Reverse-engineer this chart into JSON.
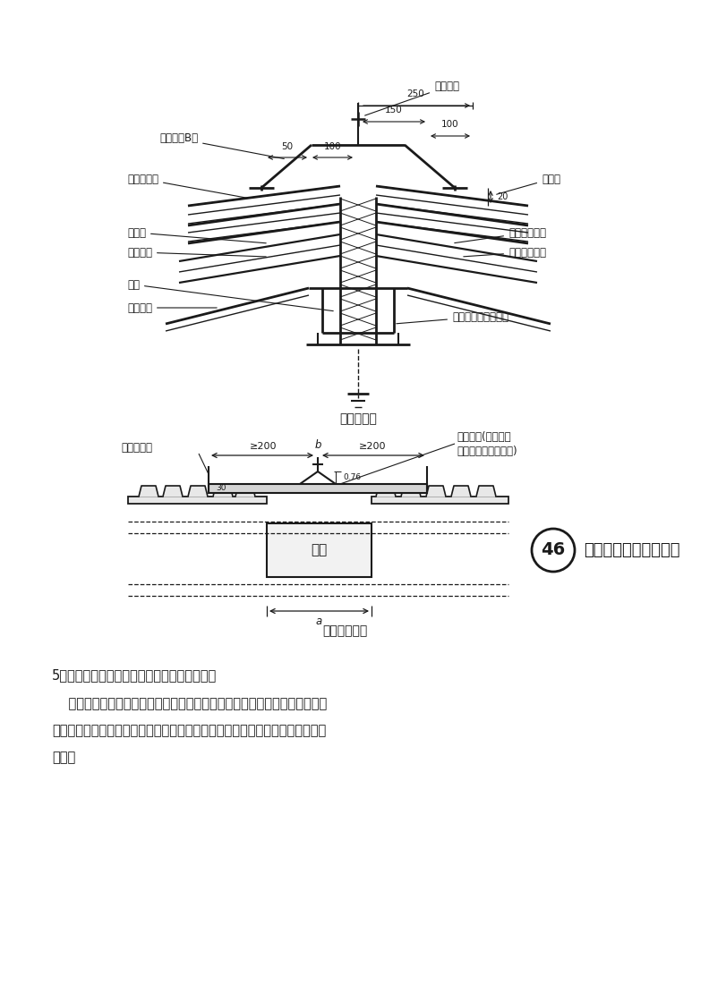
{
  "bg_color": "#ffffff",
  "fig_width": 7.92,
  "fig_height": 11.2,
  "dpi": 100,
  "diagram1_caption": "屋脊节点图",
  "diagram2_caption": "变形缝节点图",
  "diagram2_title": "紧固件连接屋面变形缝",
  "diagram2_number": "46",
  "label_self_screw1": "自攻螺钉",
  "label_ridge_cover": "屋脊盖板B型",
  "label_wave_panel": "波形采光板",
  "label_rivet": "拉铆钉",
  "label_water_stop": "挡水板",
  "label_foam_plug": "泡沫堵头",
  "label_purlin1": "檩条",
  "label_ridge_bottom": "屋脊底板",
  "label_bracket1": "采光板支架一",
  "label_bracket2": "采光板支架二",
  "label_foam_fill": "轻质聚氨酯泡沫填充",
  "label_def_cover": "变形缝盖板",
  "label_screw2_1": "自攻螺钉(檩条之间",
  "label_screw2_2": "板与板用拉铆钉连接)",
  "label_purlin2": "檩条",
  "section5_heading": "5、屋面采光板及通风天窗与彩钢板的连接节点",
  "section5_p1": "    在屋面采光板安装之前先将采光板两侧的彩钢板安装固定到位，然后将屋面",
  "section5_p2": "采光板搭接于彩钢板上侧，并采用自攻螺钉进行固定，固定后对两侧接缝满打密",
  "section5_p3": "封胶。",
  "dim_250": "250",
  "dim_150": "150",
  "dim_100": "100",
  "dim_50": "50",
  "dim_20": "20",
  "dim_ge200": "≥200",
  "dim_b": "b",
  "dim_a": "a",
  "dim_30": "30",
  "dim_076": "0.76"
}
